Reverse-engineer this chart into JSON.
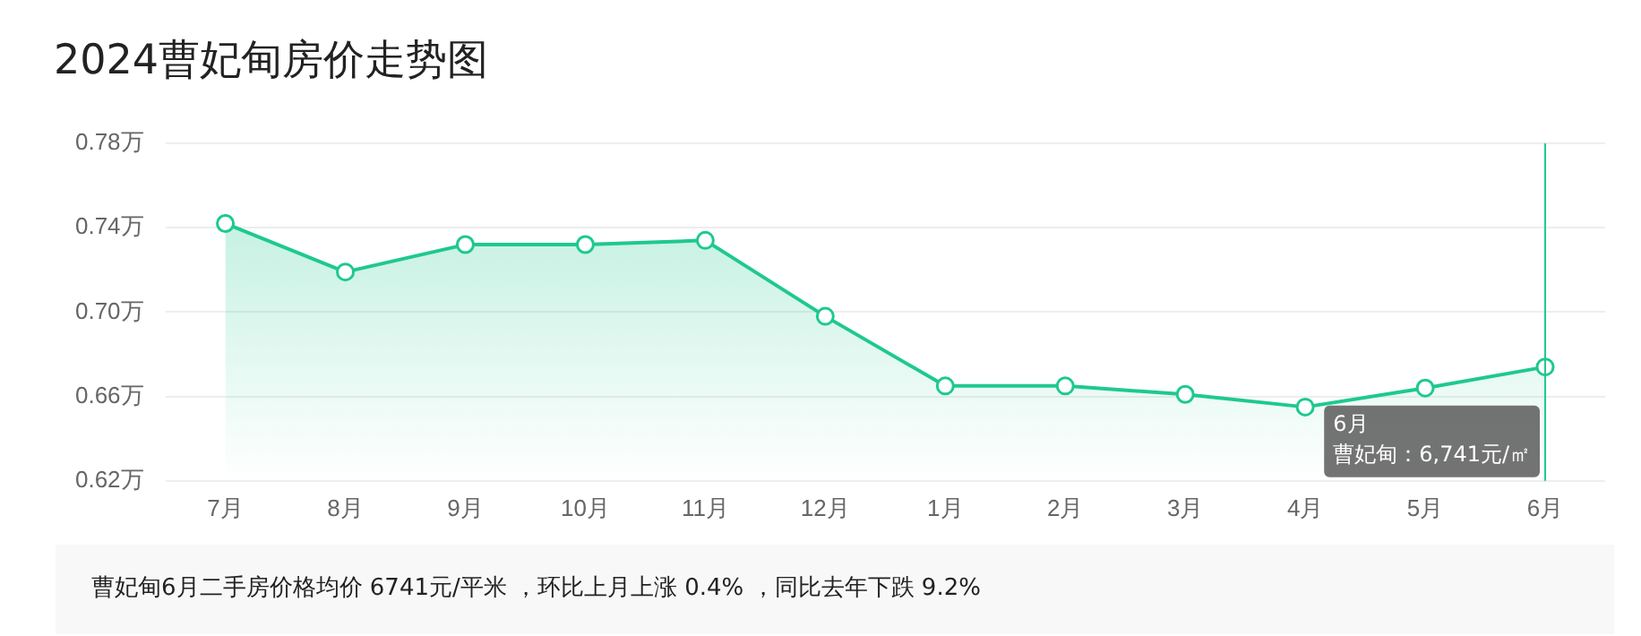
{
  "chart_data": {
    "type": "area",
    "title": "2024曹妃甸房价走势图",
    "categories": [
      "7月",
      "8月",
      "9月",
      "10月",
      "11月",
      "12月",
      "1月",
      "2月",
      "3月",
      "4月",
      "5月",
      "6月"
    ],
    "series": [
      {
        "color": "#1ec98e",
        "values": [
          0.742,
          0.719,
          0.732,
          0.732,
          0.734,
          0.698,
          0.665,
          0.665,
          0.661,
          0.655,
          0.664,
          0.674
        ]
      }
    ],
    "ylim": [
      0.62,
      0.78
    ],
    "yticks": [
      {
        "value": 0.62,
        "label": "0.62万"
      },
      {
        "value": 0.66,
        "label": "0.66万"
      },
      {
        "value": 0.7,
        "label": "0.70万"
      },
      {
        "value": 0.74,
        "label": "0.74万"
      },
      {
        "value": 0.78,
        "label": "0.78万"
      }
    ],
    "grid": "y",
    "legend": false,
    "marker": "circle",
    "ref_lines": [
      {
        "axis": "x",
        "value": "6月",
        "color": "#1ec98e"
      }
    ],
    "annotations": [
      "6月",
      "曹妃甸：6,741元/㎡",
      "曹妃甸6月二手房价格均价 6741元/平米 ，环比上月上涨 0.4% ，同比去年下跌 9.2%"
    ]
  }
}
